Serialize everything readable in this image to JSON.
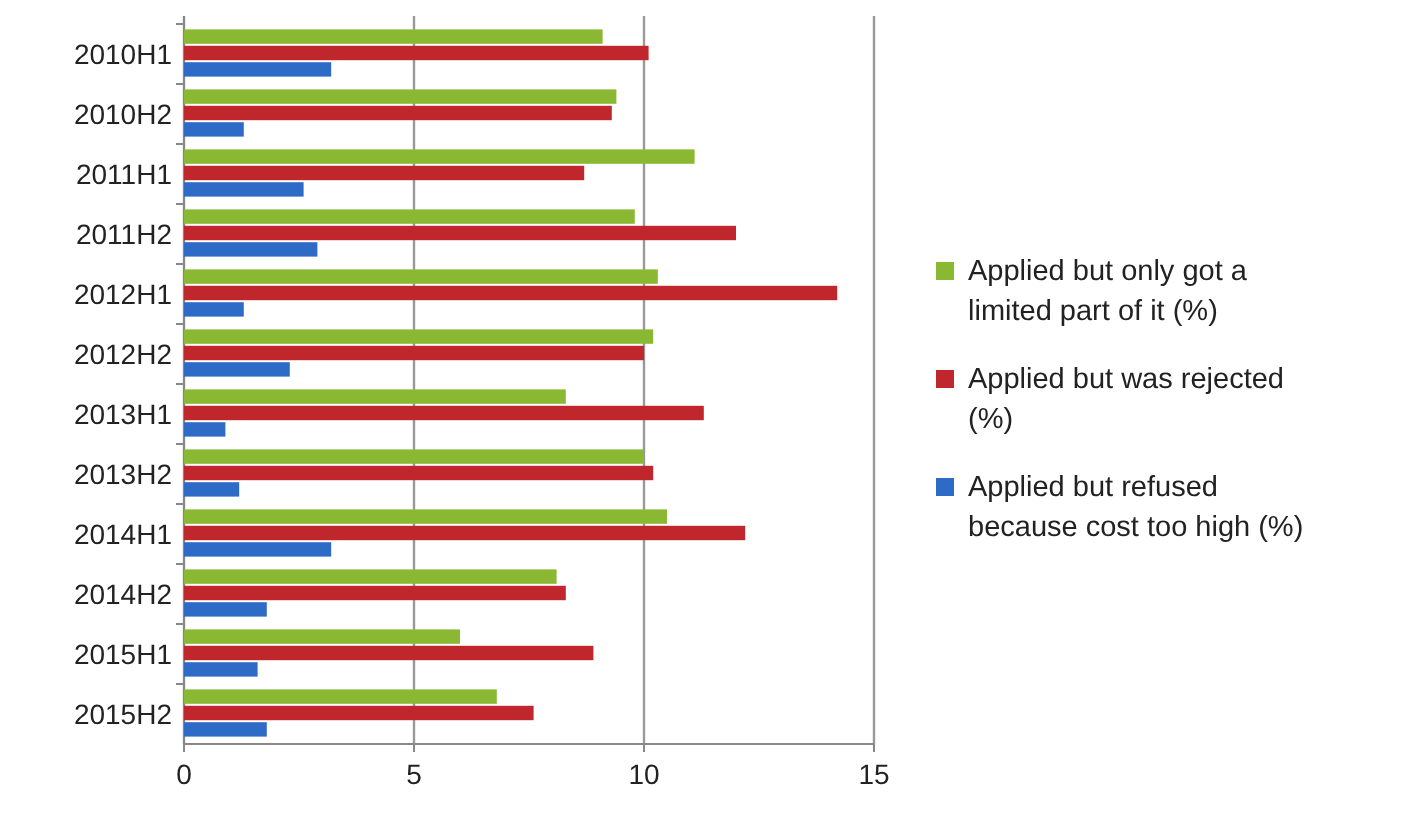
{
  "chart_data": {
    "type": "bar",
    "orientation": "horizontal",
    "categories": [
      "2010H1",
      "2010H2",
      "2011H1",
      "2011H2",
      "2012H1",
      "2012H2",
      "2013H1",
      "2013H2",
      "2014H1",
      "2014H2",
      "2015H1",
      "2015H2"
    ],
    "series": [
      {
        "name": "Applied but only got a limited part of it (%)",
        "color": "#8ab833",
        "values": [
          9.1,
          9.4,
          11.1,
          9.8,
          10.3,
          10.2,
          8.3,
          10.0,
          10.5,
          8.1,
          6.0,
          6.8
        ]
      },
      {
        "name": "Applied but was rejected (%)",
        "color": "#c0272d",
        "values": [
          10.1,
          9.3,
          8.7,
          12.0,
          14.2,
          10.0,
          11.3,
          10.2,
          12.2,
          8.3,
          8.9,
          7.6
        ]
      },
      {
        "name": "Applied but refused because cost too high (%)",
        "color": "#2e6bc6",
        "values": [
          3.2,
          1.3,
          2.6,
          2.9,
          1.3,
          2.3,
          0.9,
          1.2,
          3.2,
          1.8,
          1.6,
          1.8
        ]
      }
    ],
    "xlim": [
      0,
      15
    ],
    "xticks": [
      0,
      5,
      10,
      15
    ],
    "grid": "x",
    "legend": "right"
  }
}
